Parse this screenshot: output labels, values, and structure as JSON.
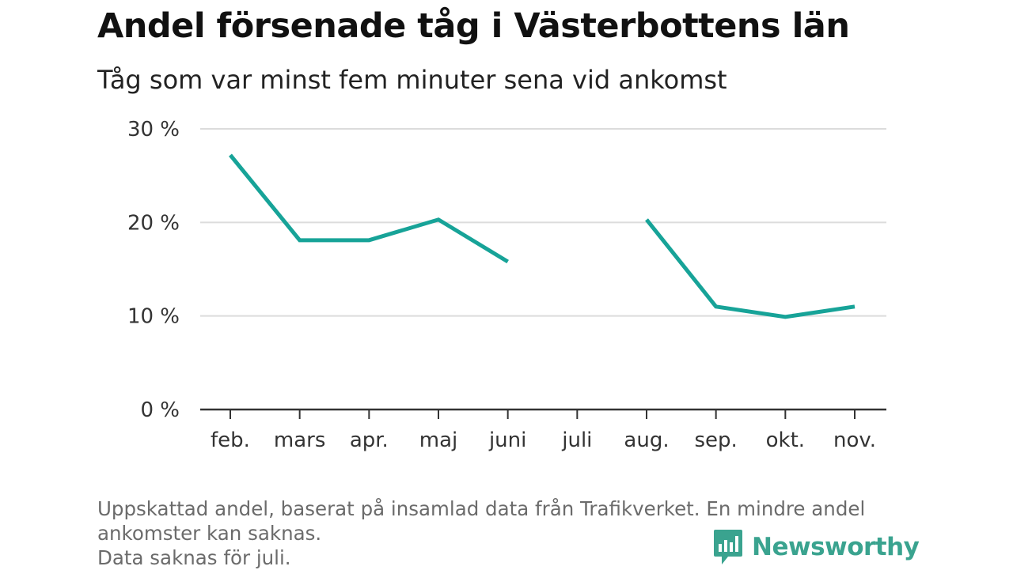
{
  "title": "Andel försenade tåg i Västerbottens län",
  "subtitle": "Tåg som var minst fem minuter sena vid ankomst",
  "footnote": [
    "Uppskattad andel, baserat på insamlad data från Trafikverket. En mindre andel",
    "ankomster kan saknas.",
    "Data saknas för juli."
  ],
  "brand": {
    "name": "Newsworthy",
    "icon": "newsworthy-logo-icon",
    "color": "#3aa38f"
  },
  "chart_data": {
    "type": "line",
    "categories": [
      "feb.",
      "mars",
      "apr.",
      "maj",
      "juni",
      "juli",
      "aug.",
      "sep.",
      "okt.",
      "nov."
    ],
    "series": [
      {
        "values": [
          27.2,
          18.1,
          18.1,
          20.3,
          15.8,
          null,
          20.3,
          11.0,
          9.9,
          11.0
        ]
      }
    ],
    "y_ticks": [
      0,
      10,
      20,
      30
    ],
    "y_tick_labels": [
      "0 %",
      "10 %",
      "20 %",
      "30 %"
    ],
    "ylim": [
      0,
      30
    ],
    "grid": true,
    "line_color": "#17a398",
    "grid_color": "#dcdcdc",
    "axis_color": "#333333"
  }
}
